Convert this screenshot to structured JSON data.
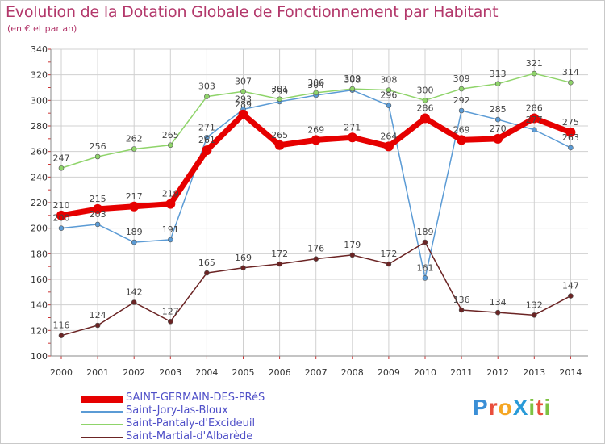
{
  "header": {
    "title": "Evolution de la Dotation Globale de Fonctionnement par Habitant",
    "subtitle": "(en € et par an)"
  },
  "logo": {
    "text": "ProXiti",
    "letters": [
      {
        "ch": "P",
        "color": "#3b8fd6"
      },
      {
        "ch": "r",
        "color": "#e94e3c"
      },
      {
        "ch": "o",
        "color": "#f5a623"
      },
      {
        "ch": "X",
        "color": "#2a9bd8"
      },
      {
        "ch": "i",
        "color": "#7dc242"
      },
      {
        "ch": "t",
        "color": "#e94e3c"
      },
      {
        "ch": "i",
        "color": "#7dc242"
      }
    ]
  },
  "chart_data": {
    "type": "line",
    "title": "Evolution de la Dotation Globale de Fonctionnement par Habitant",
    "subtitle": "(en € et par an)",
    "x": [
      "2000",
      "2001",
      "2002",
      "2003",
      "2004",
      "2005",
      "2006",
      "2007",
      "2008",
      "2009",
      "2010",
      "2011",
      "2012",
      "2013",
      "2014"
    ],
    "ylim": [
      100,
      340
    ],
    "yticks": [
      100,
      120,
      140,
      160,
      180,
      200,
      220,
      240,
      260,
      280,
      300,
      320,
      340
    ],
    "grid": true,
    "legend_position": "bottom-left",
    "series": [
      {
        "name": "SAINT-GERMAIN-DES-PRéS",
        "color": "#e60000",
        "lineWidth": 7,
        "markerRadius": 6,
        "labelColor": "#444444",
        "values": [
          210,
          215,
          217,
          219,
          261,
          289,
          265,
          269,
          271,
          264,
          286,
          269,
          270,
          286,
          275
        ],
        "labels": [
          "210",
          "215",
          "217",
          "219",
          "261",
          "289",
          "265",
          "269",
          "271",
          "264",
          "286",
          "269",
          "270",
          "286",
          "275"
        ]
      },
      {
        "name": "Saint-Jory-las-Bloux",
        "color": "#5b9bd5",
        "lineWidth": 1.5,
        "markerRadius": 3,
        "labelColor": "#444444",
        "values": [
          200,
          203,
          189,
          191,
          271,
          293,
          299,
          304,
          308,
          296,
          161,
          292,
          285,
          277,
          263
        ],
        "labels": [
          "200",
          "203",
          "189",
          "191",
          "271",
          "293",
          "299",
          "304",
          "308",
          "296",
          "161",
          "292",
          "285",
          "277",
          "263"
        ]
      },
      {
        "name": "Saint-Pantaly-d'Excideuil",
        "color": "#8fd46a",
        "lineWidth": 1.5,
        "markerRadius": 3,
        "labelColor": "#444444",
        "values": [
          247,
          256,
          262,
          265,
          303,
          307,
          301,
          306,
          309,
          308,
          300,
          309,
          313,
          321,
          314
        ],
        "labels": [
          "247",
          "256",
          "262",
          "265",
          "303",
          "307",
          "301",
          "306",
          "309",
          "308",
          "300",
          "309",
          "313",
          "321",
          "314"
        ]
      },
      {
        "name": "Saint-Martial-d'Albarède",
        "color": "#6b2424",
        "lineWidth": 1.5,
        "markerRadius": 3,
        "labelColor": "#444444",
        "values": [
          116,
          124,
          142,
          127,
          165,
          169,
          172,
          176,
          179,
          172,
          189,
          136,
          134,
          132,
          147
        ],
        "labels": [
          "116",
          "124",
          "142",
          "127",
          "165",
          "169",
          "172",
          "176",
          "179",
          "172",
          "189",
          "136",
          "134",
          "132",
          "147"
        ]
      }
    ]
  }
}
